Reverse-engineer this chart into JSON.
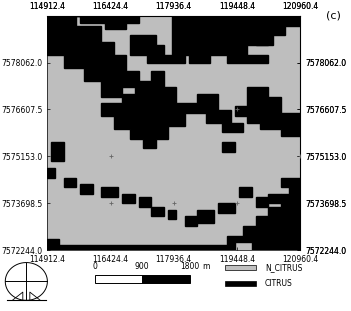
{
  "title_label": "(c)",
  "xlim": [
    114912.4,
    120960.4
  ],
  "ylim": [
    7572244.0,
    7579517.0
  ],
  "xticks": [
    114912.4,
    116424.4,
    117936.4,
    119448.4,
    120960.4
  ],
  "yticks": [
    7572244.0,
    7573698.5,
    7575153.0,
    7576607.5,
    7578062.0
  ],
  "map_bg_color": "#bebebe",
  "black_color": "#000000",
  "figure_bg": "#ffffff",
  "tick_fontsize": 5.5,
  "cross_positions": [
    [
      116424.4,
      7575153.0
    ],
    [
      117936.4,
      7573698.5
    ],
    [
      119448.4,
      7573698.5
    ],
    [
      119448.4,
      7576607.5
    ],
    [
      120960.4,
      7575153.0
    ],
    [
      116424.4,
      7573698.5
    ]
  ],
  "citrus_patches": [
    [
      [
        114912,
        7579517
      ],
      [
        115600,
        7579517
      ],
      [
        115600,
        7579200
      ],
      [
        115200,
        7579200
      ],
      [
        115200,
        7578900
      ],
      [
        114912,
        7578900
      ]
    ],
    [
      [
        115300,
        7579517
      ],
      [
        117100,
        7579517
      ],
      [
        117100,
        7579300
      ],
      [
        116800,
        7579300
      ],
      [
        116800,
        7579100
      ],
      [
        116300,
        7579100
      ],
      [
        116300,
        7579300
      ],
      [
        115700,
        7579300
      ],
      [
        115700,
        7579517
      ]
    ],
    [
      [
        115000,
        7579200
      ],
      [
        116200,
        7579200
      ],
      [
        116200,
        7578700
      ],
      [
        116500,
        7578700
      ],
      [
        116500,
        7578300
      ],
      [
        116800,
        7578300
      ],
      [
        116800,
        7577800
      ],
      [
        117100,
        7577800
      ],
      [
        117100,
        7577300
      ],
      [
        116700,
        7577300
      ],
      [
        116700,
        7577000
      ],
      [
        116200,
        7577000
      ],
      [
        116200,
        7577500
      ],
      [
        115800,
        7577500
      ],
      [
        115800,
        7577900
      ],
      [
        115300,
        7577900
      ],
      [
        115300,
        7578300
      ],
      [
        114912,
        7578300
      ],
      [
        114912,
        7579200
      ]
    ],
    [
      [
        115700,
        7578600
      ],
      [
        116100,
        7578600
      ],
      [
        116100,
        7578300
      ],
      [
        115700,
        7578300
      ]
    ],
    [
      [
        116900,
        7578900
      ],
      [
        117500,
        7578900
      ],
      [
        117500,
        7578600
      ],
      [
        117700,
        7578600
      ],
      [
        117700,
        7578300
      ],
      [
        118200,
        7578300
      ],
      [
        118200,
        7578062
      ],
      [
        117300,
        7578062
      ],
      [
        117300,
        7578300
      ],
      [
        116900,
        7578300
      ]
    ],
    [
      [
        117900,
        7579517
      ],
      [
        120960,
        7579517
      ],
      [
        120960,
        7579200
      ],
      [
        120600,
        7579200
      ],
      [
        120600,
        7578900
      ],
      [
        120200,
        7578900
      ],
      [
        120200,
        7578600
      ],
      [
        119700,
        7578600
      ],
      [
        119700,
        7578300
      ],
      [
        120200,
        7578300
      ],
      [
        120200,
        7578062
      ],
      [
        119200,
        7578062
      ],
      [
        119200,
        7578300
      ],
      [
        118800,
        7578300
      ],
      [
        118800,
        7578062
      ],
      [
        118300,
        7578062
      ],
      [
        118300,
        7578300
      ],
      [
        117900,
        7578300
      ]
    ],
    [
      [
        119900,
        7578900
      ],
      [
        120300,
        7578900
      ],
      [
        120300,
        7578600
      ],
      [
        119900,
        7578600
      ]
    ],
    [
      [
        119200,
        7578700
      ],
      [
        119600,
        7578700
      ],
      [
        119600,
        7578400
      ],
      [
        119200,
        7578400
      ]
    ],
    [
      [
        118600,
        7578900
      ],
      [
        118900,
        7578900
      ],
      [
        118900,
        7578700
      ],
      [
        118600,
        7578700
      ]
    ],
    [
      [
        117400,
        7577800
      ],
      [
        117700,
        7577800
      ],
      [
        117700,
        7577300
      ],
      [
        118000,
        7577300
      ],
      [
        118000,
        7576800
      ],
      [
        118500,
        7576800
      ],
      [
        118500,
        7577100
      ],
      [
        119000,
        7577100
      ],
      [
        119000,
        7576600
      ],
      [
        119300,
        7576600
      ],
      [
        119300,
        7576200
      ],
      [
        119600,
        7576200
      ],
      [
        119600,
        7575900
      ],
      [
        119100,
        7575900
      ],
      [
        119100,
        7576200
      ],
      [
        118700,
        7576200
      ],
      [
        118700,
        7576500
      ],
      [
        118200,
        7576500
      ],
      [
        118200,
        7576100
      ],
      [
        117800,
        7576100
      ],
      [
        117800,
        7575700
      ],
      [
        117500,
        7575700
      ],
      [
        117500,
        7575400
      ],
      [
        117200,
        7575400
      ],
      [
        117200,
        7575700
      ],
      [
        116900,
        7575700
      ],
      [
        116900,
        7576000
      ],
      [
        116500,
        7576000
      ],
      [
        116500,
        7576400
      ],
      [
        116200,
        7576400
      ],
      [
        116200,
        7576800
      ],
      [
        116700,
        7576800
      ],
      [
        116700,
        7577100
      ],
      [
        117000,
        7577100
      ],
      [
        117000,
        7577500
      ],
      [
        117400,
        7577500
      ]
    ],
    [
      [
        119700,
        7577300
      ],
      [
        120200,
        7577300
      ],
      [
        120200,
        7577000
      ],
      [
        120500,
        7577000
      ],
      [
        120500,
        7576500
      ],
      [
        120960,
        7576500
      ],
      [
        120960,
        7575800
      ],
      [
        120500,
        7575800
      ],
      [
        120500,
        7576000
      ],
      [
        120000,
        7576000
      ],
      [
        120000,
        7576200
      ],
      [
        119700,
        7576200
      ]
    ],
    [
      [
        119400,
        7576700
      ],
      [
        119800,
        7576700
      ],
      [
        119800,
        7576400
      ],
      [
        119400,
        7576400
      ]
    ],
    [
      [
        119100,
        7575600
      ],
      [
        119400,
        7575600
      ],
      [
        119400,
        7575300
      ],
      [
        119100,
        7575300
      ]
    ],
    [
      [
        115000,
        7575600
      ],
      [
        115300,
        7575600
      ],
      [
        115300,
        7575000
      ],
      [
        115000,
        7575000
      ]
    ],
    [
      [
        114912,
        7574800
      ],
      [
        115100,
        7574800
      ],
      [
        115100,
        7574500
      ],
      [
        114912,
        7574500
      ]
    ],
    [
      [
        115300,
        7574500
      ],
      [
        115600,
        7574500
      ],
      [
        115600,
        7574200
      ],
      [
        115300,
        7574200
      ]
    ],
    [
      [
        115700,
        7574300
      ],
      [
        116000,
        7574300
      ],
      [
        116000,
        7574000
      ],
      [
        115700,
        7574000
      ]
    ],
    [
      [
        116200,
        7574200
      ],
      [
        116600,
        7574200
      ],
      [
        116600,
        7573900
      ],
      [
        116200,
        7573900
      ]
    ],
    [
      [
        116700,
        7574000
      ],
      [
        117000,
        7574000
      ],
      [
        117000,
        7573700
      ],
      [
        116700,
        7573700
      ]
    ],
    [
      [
        117100,
        7573900
      ],
      [
        117400,
        7573900
      ],
      [
        117400,
        7573600
      ],
      [
        117700,
        7573600
      ],
      [
        117700,
        7573300
      ],
      [
        117400,
        7573300
      ],
      [
        117400,
        7573600
      ],
      [
        117100,
        7573600
      ]
    ],
    [
      [
        117800,
        7573500
      ],
      [
        118000,
        7573500
      ],
      [
        118000,
        7573200
      ],
      [
        117800,
        7573200
      ]
    ],
    [
      [
        118200,
        7573300
      ],
      [
        118500,
        7573300
      ],
      [
        118500,
        7573000
      ],
      [
        118200,
        7573000
      ]
    ],
    [
      [
        118500,
        7573500
      ],
      [
        118900,
        7573500
      ],
      [
        118900,
        7573100
      ],
      [
        118500,
        7573100
      ]
    ],
    [
      [
        119000,
        7573700
      ],
      [
        119400,
        7573700
      ],
      [
        119400,
        7573400
      ],
      [
        119000,
        7573400
      ]
    ],
    [
      [
        119500,
        7574200
      ],
      [
        119800,
        7574200
      ],
      [
        119800,
        7573900
      ],
      [
        119500,
        7573900
      ]
    ],
    [
      [
        119900,
        7573900
      ],
      [
        120200,
        7573900
      ],
      [
        120200,
        7573600
      ],
      [
        119900,
        7573600
      ]
    ],
    [
      [
        120200,
        7574000
      ],
      [
        120500,
        7574000
      ],
      [
        120500,
        7573700
      ],
      [
        120200,
        7573700
      ]
    ],
    [
      [
        120500,
        7574500
      ],
      [
        120960,
        7574500
      ],
      [
        120960,
        7572244
      ],
      [
        119800,
        7572244
      ],
      [
        119800,
        7572500
      ],
      [
        119400,
        7572500
      ],
      [
        119400,
        7572244
      ],
      [
        114912,
        7572244
      ],
      [
        114912,
        7572400
      ],
      [
        119200,
        7572400
      ],
      [
        119200,
        7572700
      ],
      [
        119600,
        7572700
      ],
      [
        119600,
        7573000
      ],
      [
        119900,
        7573000
      ],
      [
        119900,
        7573300
      ],
      [
        120200,
        7573300
      ],
      [
        120200,
        7573600
      ],
      [
        120500,
        7573600
      ],
      [
        120500,
        7574000
      ],
      [
        120700,
        7574000
      ],
      [
        120700,
        7574200
      ],
      [
        120500,
        7574200
      ]
    ],
    [
      [
        114912,
        7572600
      ],
      [
        115200,
        7572600
      ],
      [
        115200,
        7572400
      ],
      [
        114912,
        7572400
      ]
    ]
  ]
}
